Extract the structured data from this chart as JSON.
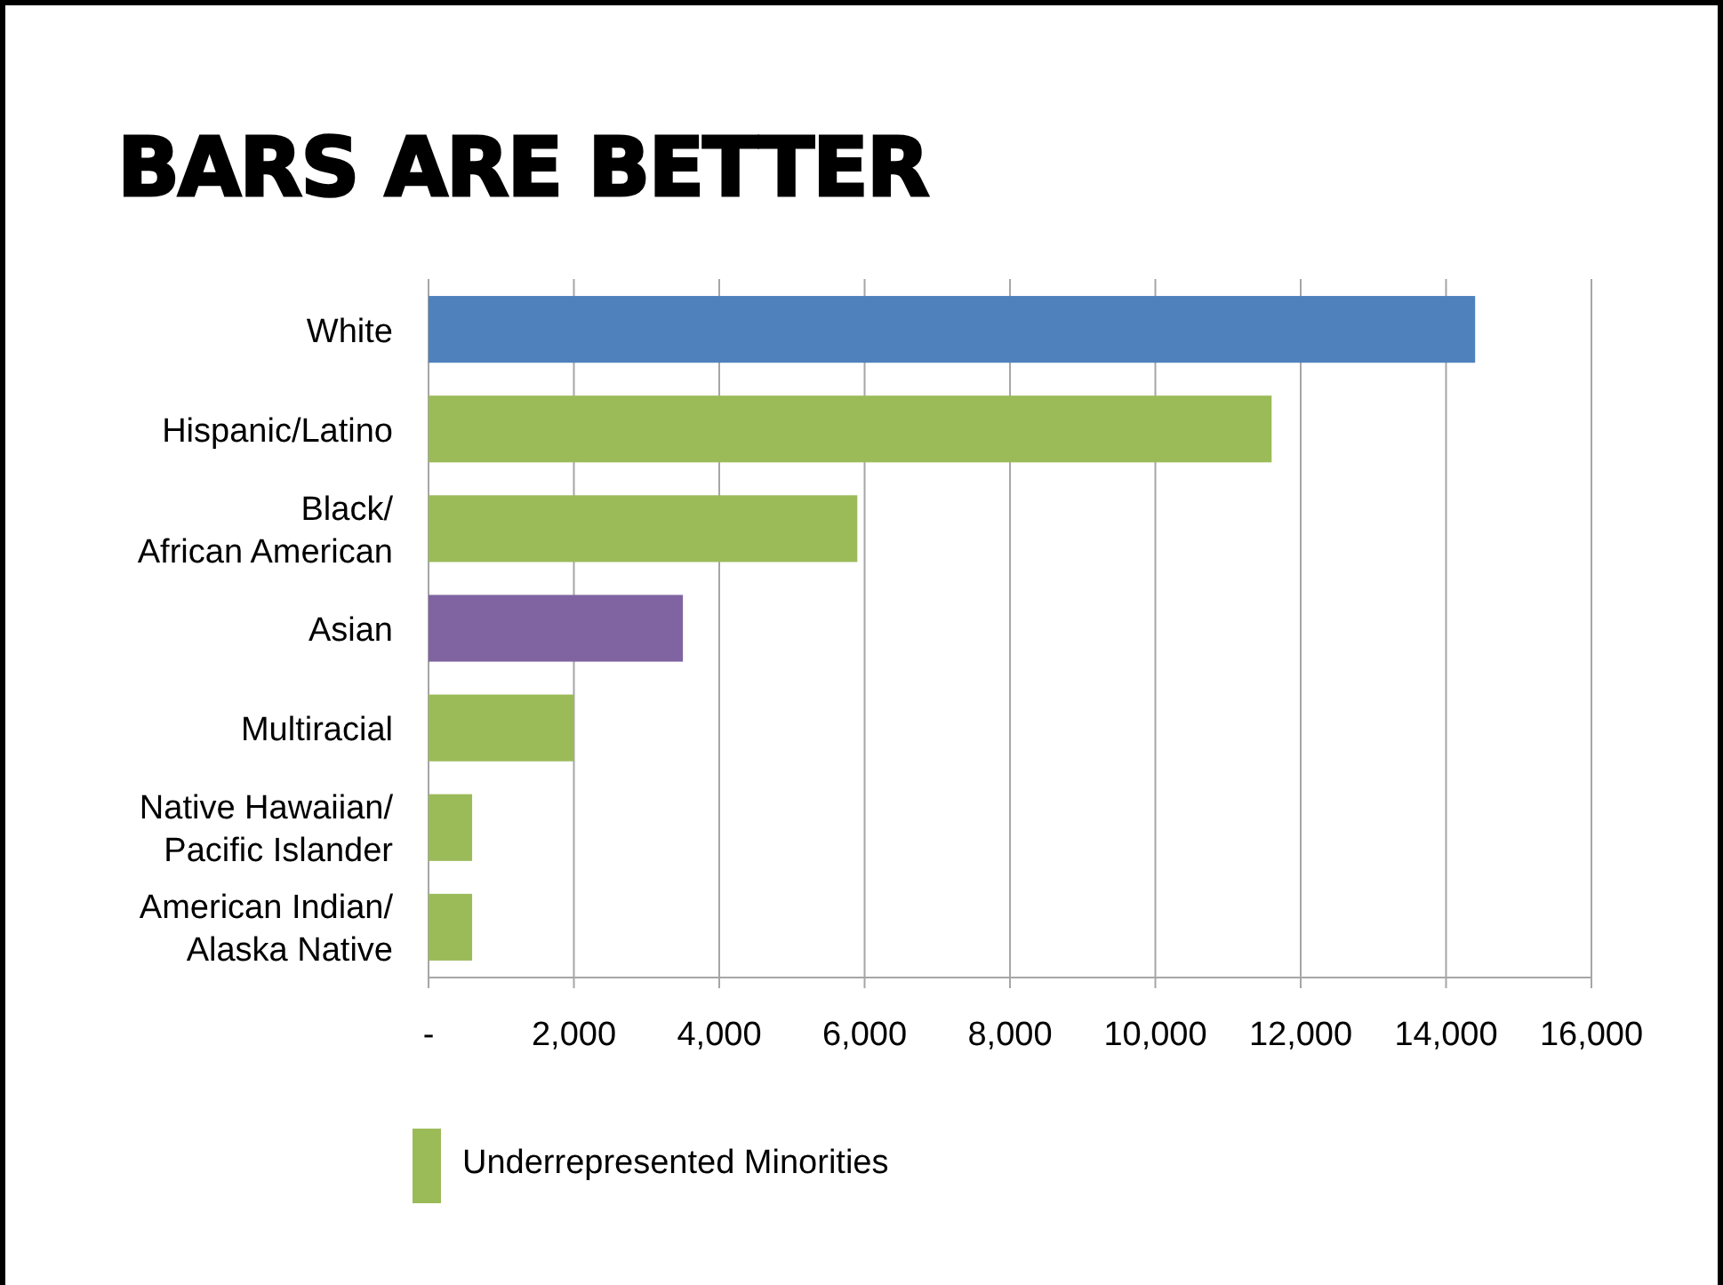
{
  "chart_data": {
    "type": "bar",
    "orientation": "horizontal",
    "title": "BARS ARE BETTER",
    "categories": [
      "White",
      "Hispanic/Latino",
      "Black/\nAfrican American",
      "Asian",
      "Multiracial",
      "Native Hawaiian/\nPacific Islander",
      "American Indian/\nAlaska Native"
    ],
    "series": [
      {
        "name": "Underrepresented Minorities",
        "color": "#9bbb59",
        "values": [
          null,
          11600,
          5900,
          null,
          2000,
          600,
          600
        ]
      },
      {
        "colors": [
          "#4f81bd",
          null,
          null,
          "#8064a2",
          null,
          null,
          null
        ],
        "values": [
          14400,
          null,
          null,
          3500,
          null,
          null,
          null
        ]
      }
    ],
    "xlim": [
      0,
      16000
    ],
    "xticks": [
      {
        "value": 0,
        "label": "-"
      },
      {
        "value": 2000,
        "label": "2,000"
      },
      {
        "value": 4000,
        "label": "4,000"
      },
      {
        "value": 6000,
        "label": "6,000"
      },
      {
        "value": 8000,
        "label": "8,000"
      },
      {
        "value": 10000,
        "label": "10,000"
      },
      {
        "value": 12000,
        "label": "12,000"
      },
      {
        "value": 14000,
        "label": "14,000"
      },
      {
        "value": 16000,
        "label": "16,000"
      }
    ],
    "grid": "x",
    "legend": "bottom"
  }
}
